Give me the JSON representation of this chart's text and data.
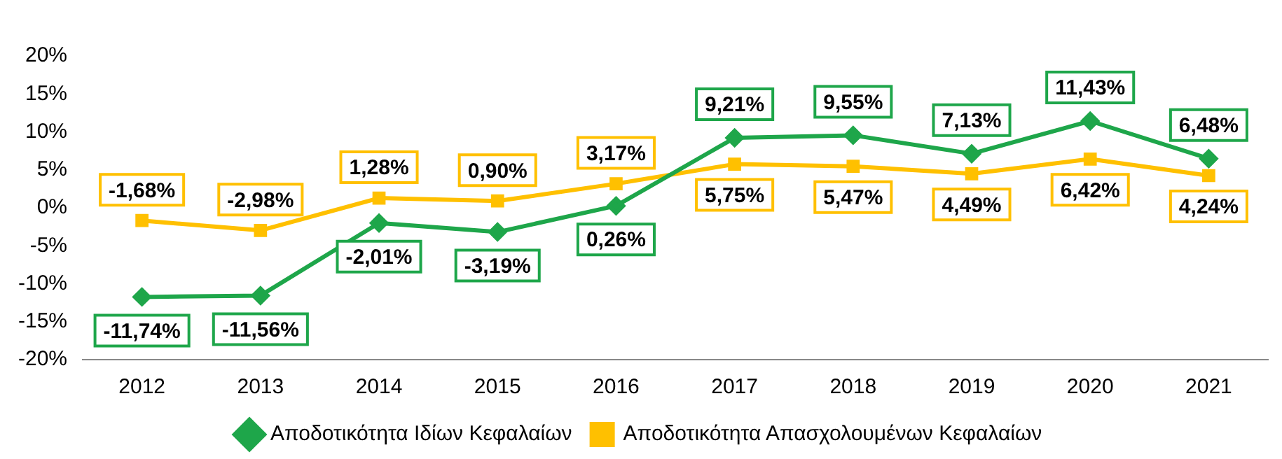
{
  "chart_data": {
    "type": "line",
    "categories": [
      "2012",
      "2013",
      "2014",
      "2015",
      "2016",
      "2017",
      "2018",
      "2019",
      "2020",
      "2021"
    ],
    "series": [
      {
        "name": "Αποδοτικότητα Ιδίων Κεφαλαίων",
        "color": "#1ea64a",
        "marker": "diamond",
        "values": [
          -11.74,
          -11.56,
          -2.01,
          -3.19,
          0.26,
          9.21,
          9.55,
          7.13,
          11.43,
          6.48
        ],
        "value_labels": [
          "-11,74%",
          "-11,56%",
          "-2,01%",
          "-3,19%",
          "0,26%",
          "9,21%",
          "9,55%",
          "7,13%",
          "11,43%",
          "6,48%"
        ]
      },
      {
        "name": "Αποδοτικότητα Απασχολουμένων Κεφαλαίων",
        "color": "#ffc000",
        "marker": "square",
        "values": [
          -1.68,
          -2.98,
          1.28,
          0.9,
          3.17,
          5.75,
          5.47,
          4.49,
          6.42,
          4.24
        ],
        "value_labels": [
          "-1,68%",
          "-2,98%",
          "1,28%",
          "0,90%",
          "3,17%",
          "5,75%",
          "5,47%",
          "4,49%",
          "6,42%",
          "4,24%"
        ]
      }
    ],
    "ylim": [
      -20,
      20
    ],
    "yticks": [
      {
        "value": -20,
        "label": "-20%"
      },
      {
        "value": -15,
        "label": "-15%"
      },
      {
        "value": -10,
        "label": "-10%"
      },
      {
        "value": -5,
        "label": "-5%"
      },
      {
        "value": 0,
        "label": "0%"
      },
      {
        "value": 5,
        "label": "5%"
      },
      {
        "value": 10,
        "label": "10%"
      },
      {
        "value": 15,
        "label": "15%"
      },
      {
        "value": 20,
        "label": "20%"
      }
    ],
    "grid": false,
    "legend": "bottom",
    "line_style": "solid"
  }
}
